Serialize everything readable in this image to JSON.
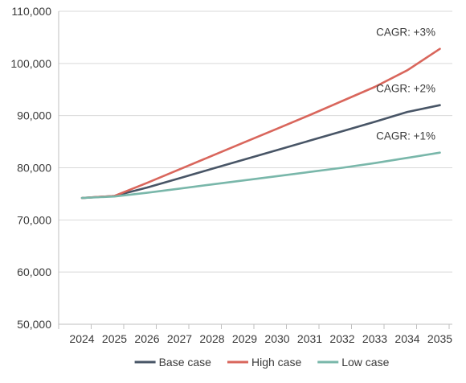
{
  "chart_data": {
    "type": "line",
    "x": [
      "2024",
      "2025",
      "2026",
      "2027",
      "2028",
      "2029",
      "2030",
      "2031",
      "2032",
      "2033",
      "2034",
      "2035"
    ],
    "ylim": [
      50000,
      110000
    ],
    "yticks": [
      50000,
      60000,
      70000,
      80000,
      90000,
      100000,
      110000
    ],
    "ytick_labels": [
      "50,000",
      "60,000",
      "70,000",
      "80,000",
      "90,000",
      "100,000",
      "110,000"
    ],
    "grid": "horizontal",
    "legend": "bottom",
    "series": [
      {
        "name": "Base case",
        "color": "#485566",
        "values": [
          74200,
          74600,
          76200,
          78000,
          79800,
          81600,
          83400,
          85200,
          87000,
          88800,
          90700,
          92000
        ]
      },
      {
        "name": "High case",
        "color": "#d9665c",
        "values": [
          74200,
          74600,
          77100,
          79700,
          82300,
          84900,
          87500,
          90100,
          92800,
          95500,
          98700,
          102800
        ]
      },
      {
        "name": "Low case",
        "color": "#79b7aa",
        "values": [
          74200,
          74500,
          75200,
          76000,
          76800,
          77600,
          78400,
          79200,
          80000,
          80900,
          81900,
          82900
        ]
      }
    ],
    "annotations": [
      {
        "text": "CAGR: +3%",
        "series": 1
      },
      {
        "text": "CAGR: +2%",
        "series": 0
      },
      {
        "text": "CAGR: +1%",
        "series": 2
      }
    ]
  }
}
